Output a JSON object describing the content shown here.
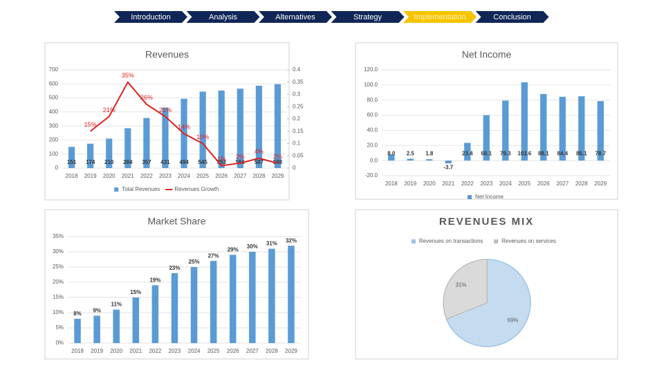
{
  "nav": {
    "items": [
      "Introduction",
      "Analysis",
      "Alternatives",
      "Strategy",
      "Implementation",
      "Conclusion"
    ],
    "color": "#0f2657",
    "active": 4,
    "active_color": "#f5c400"
  },
  "chart_data": [
    {
      "type": "combo",
      "title": "Revenues",
      "categories": [
        "2018",
        "2019",
        "2020",
        "2021",
        "2022",
        "2023",
        "2024",
        "2025",
        "2026",
        "2027",
        "2028",
        "2029"
      ],
      "series": [
        {
          "name": "Total Revenues",
          "type": "bar",
          "color": "#5b9bd5",
          "values": [
            151,
            174,
            210,
            284,
            357,
            431,
            494,
            545,
            553,
            566,
            587,
            598
          ]
        },
        {
          "name": "Revenues Growth",
          "type": "line",
          "axis": "y2",
          "color": "#e02020",
          "values": [
            null,
            0.15,
            0.21,
            0.35,
            0.26,
            0.21,
            0.14,
            0.1,
            0.01,
            0.02,
            0.04,
            0.02
          ],
          "value_labels": [
            null,
            "15%",
            "21%",
            "35%",
            "26%",
            "21%",
            "14%",
            "10%",
            "1%",
            "2%",
            "4%",
            "2%"
          ]
        }
      ],
      "ylim": [
        0,
        700
      ],
      "yticks": [
        0,
        100,
        200,
        300,
        400,
        500,
        600,
        700
      ],
      "y2lim": [
        0,
        0.4
      ],
      "y2ticks": [
        0,
        0.05,
        0.1,
        0.15,
        0.2,
        0.25,
        0.3,
        0.35,
        0.4
      ],
      "grid": true,
      "legend": "bottom"
    },
    {
      "type": "bar",
      "title": "Net Income",
      "categories": [
        "2018",
        "2019",
        "2020",
        "2021",
        "2022",
        "2023",
        "2024",
        "2025",
        "2026",
        "2027",
        "2028",
        "2029"
      ],
      "series": [
        {
          "name": "Net Income",
          "color": "#5b9bd5",
          "values": [
            8.0,
            2.5,
            1.8,
            -3.7,
            23.4,
            60.1,
            79.3,
            103.6,
            88.1,
            84.4,
            85.1,
            78.7
          ],
          "value_labels": [
            "8.0",
            "2.5",
            "1.8",
            "-3.7",
            "23.4",
            "60.1",
            "79.3",
            "103.6",
            "88.1",
            "84.4",
            "85.1",
            "78.7"
          ]
        }
      ],
      "ylim": [
        -20,
        120
      ],
      "yticks": [
        {
          "value": -20,
          "label": "-20.0"
        },
        {
          "value": 0,
          "label": "0.0"
        },
        {
          "value": 20,
          "label": "20.0"
        },
        {
          "value": 40,
          "label": "40.0"
        },
        {
          "value": 60,
          "label": "60.0"
        },
        {
          "value": 80,
          "label": "80.0"
        },
        {
          "value": 100,
          "label": "100.0"
        },
        {
          "value": 120,
          "label": "120.0"
        }
      ],
      "grid": true,
      "legend": "bottom"
    },
    {
      "type": "bar",
      "title": "Market Share",
      "categories": [
        "2018",
        "2019",
        "2020",
        "2021",
        "2022",
        "2023",
        "2024",
        "2025",
        "2026",
        "2027",
        "2028",
        "2029"
      ],
      "series": [
        {
          "name": null,
          "color": "#5b9bd5",
          "values": [
            8,
            9,
            11,
            15,
            19,
            23,
            25,
            27,
            29,
            30,
            31,
            32
          ],
          "value_labels": [
            "8%",
            "9%",
            "11%",
            "15%",
            "19%",
            "23%",
            "25%",
            "27%",
            "29%",
            "30%",
            "31%",
            "32%"
          ]
        }
      ],
      "ylim": [
        0,
        35
      ],
      "yticks": [
        {
          "value": 0,
          "label": "0%"
        },
        {
          "value": 5,
          "label": "5%"
        },
        {
          "value": 10,
          "label": "10%"
        },
        {
          "value": 15,
          "label": "15%"
        },
        {
          "value": 20,
          "label": "20%"
        },
        {
          "value": 25,
          "label": "25%"
        },
        {
          "value": 30,
          "label": "30%"
        },
        {
          "value": 35,
          "label": "35%"
        }
      ],
      "grid": true
    },
    {
      "type": "pie",
      "title": "REVENUES MIX",
      "labels": [
        "Revenues on transactions",
        "Revenues on services"
      ],
      "values": [
        69,
        31
      ],
      "value_labels": [
        "69%",
        "31%"
      ],
      "colors": [
        "#c5dcf0",
        "#dadada"
      ],
      "legend": "top"
    }
  ]
}
